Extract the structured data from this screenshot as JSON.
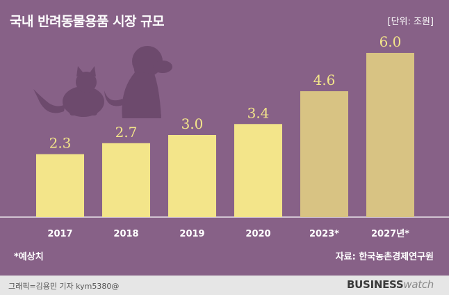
{
  "header": {
    "title": "국내 반려동물용품 시장 규모",
    "unit": "[단위: 조원]"
  },
  "chart_data": {
    "type": "bar",
    "title": "국내 반려동물용품 시장 규모",
    "unit": "[단위: 조원]",
    "categories": [
      "2017",
      "2018",
      "2019",
      "2020",
      "2023*",
      "2027년*"
    ],
    "values": [
      2.3,
      2.7,
      3.0,
      3.4,
      4.6,
      6.0
    ],
    "value_labels": [
      "2.3",
      "2.7",
      "3.0",
      "3.4",
      "4.6",
      "6.0"
    ],
    "forecast": [
      false,
      false,
      false,
      false,
      true,
      true
    ],
    "ylim": [
      0,
      6.0
    ],
    "grid": false,
    "legend": "none"
  },
  "colors": {
    "background": "#876187",
    "actual_bar": "#f3e58a",
    "forecast_bar": "#d8c383",
    "value_label": "#f3e58a",
    "axis_line": "#ffffff",
    "silhouette": "#6d4a6d"
  },
  "icons": [
    "cat-silhouette-icon",
    "dog-silhouette-icon"
  ],
  "notes": {
    "forecast_note": "*예상치",
    "source": "자료: 한국농촌경제연구원"
  },
  "footer": {
    "credit": "그래픽=김용민 기자 kym5380@",
    "brand_main": "BUSINESS",
    "brand_sub": "watch"
  }
}
